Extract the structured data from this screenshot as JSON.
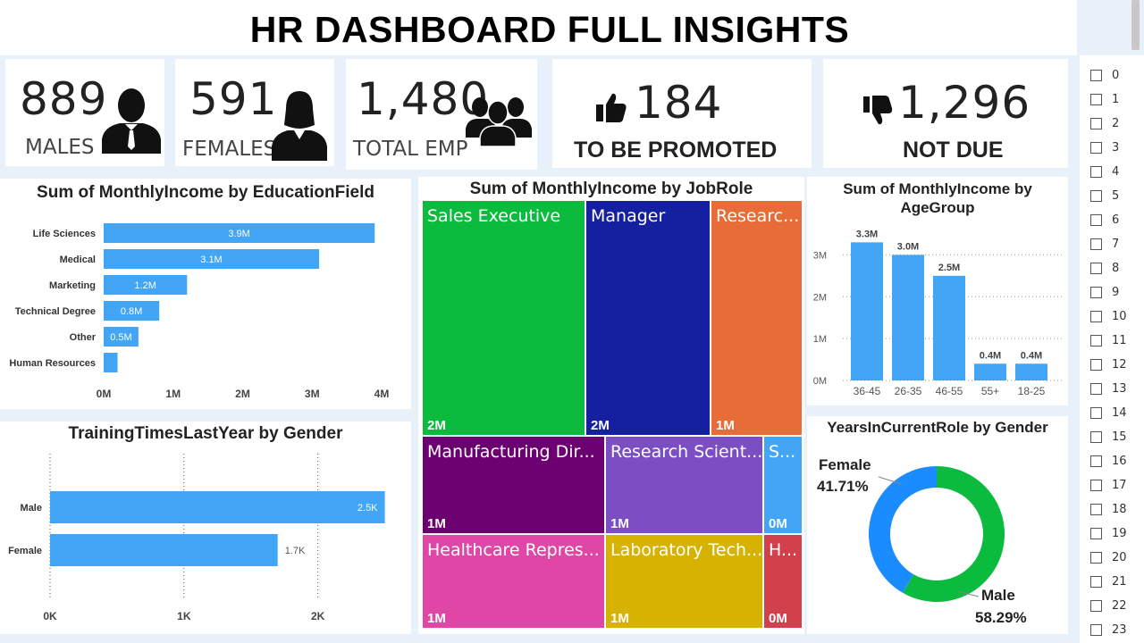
{
  "header": {
    "title": "HR DASHBOARD FULL INSIGHTS"
  },
  "kpis": {
    "males": {
      "value": "889",
      "label": "MALES",
      "icon": "male-person-icon"
    },
    "females": {
      "value": "591",
      "label": "FEMALES",
      "icon": "female-person-icon"
    },
    "total": {
      "value": "1,480",
      "label": "TOTAL EMP",
      "icon": "group-people-icon"
    },
    "promoted": {
      "value": "184",
      "label": "TO BE PROMOTED",
      "icon": "thumbs-up-icon"
    },
    "not_due": {
      "value": "1,296",
      "label": "NOT DUE",
      "icon": "thumbs-down-icon"
    }
  },
  "colors": {
    "bar": "#42a5f5",
    "green": "#0abb3e",
    "navy": "#1420a0",
    "orange": "#e76c37",
    "purple": "#6c0070",
    "violet": "#7b4fc3",
    "sky": "#42a5f5",
    "pink": "#e046a6",
    "gold": "#d8b200",
    "red": "#d2404b"
  },
  "charts": {
    "education": {
      "title": "Sum of MonthlyIncome by EducationField",
      "chart_data": {
        "type": "bar",
        "orientation": "horizontal",
        "categories": [
          "Life Sciences",
          "Medical",
          "Marketing",
          "Technical Degree",
          "Other",
          "Human Resources"
        ],
        "values": [
          3.9,
          3.1,
          1.2,
          0.8,
          0.5,
          0.2
        ],
        "data_labels": [
          "3.9M",
          "3.1M",
          "1.2M",
          "0.8M",
          "0.5M",
          ""
        ],
        "xlim": [
          0,
          4
        ],
        "xticks": [
          0,
          1,
          2,
          3,
          4
        ],
        "xtick_labels": [
          "0M",
          "1M",
          "2M",
          "3M",
          "4M"
        ]
      }
    },
    "training": {
      "title": "TrainingTimesLastYear by Gender",
      "chart_data": {
        "type": "bar",
        "orientation": "horizontal",
        "categories": [
          "Male",
          "Female"
        ],
        "values": [
          2.5,
          1.7
        ],
        "data_labels": [
          "2.5K",
          "1.7K"
        ],
        "xlim": [
          0,
          2.75
        ],
        "xticks": [
          0,
          1,
          2
        ],
        "xtick_labels": [
          "0K",
          "1K",
          "2K"
        ],
        "grid": true
      }
    },
    "jobrole": {
      "title": "Sum of MonthlyIncome by JobRole",
      "chart_data": {
        "type": "treemap",
        "items": [
          {
            "label": "Sales Executive",
            "value": "2M",
            "color": "#0abb3e"
          },
          {
            "label": "Manager",
            "value": "2M",
            "color": "#1420a0"
          },
          {
            "label": "Researc...",
            "value": "1M",
            "color": "#e76c37"
          },
          {
            "label": "Manufacturing Dir...",
            "value": "1M",
            "color": "#6c0070"
          },
          {
            "label": "Research Scient...",
            "value": "1M",
            "color": "#7b4fc3"
          },
          {
            "label": "S...",
            "value": "0M",
            "color": "#42a5f5"
          },
          {
            "label": "Healthcare Repres...",
            "value": "1M",
            "color": "#e046a6"
          },
          {
            "label": "Laboratory Tech...",
            "value": "1M",
            "color": "#d8b200"
          },
          {
            "label": "H...",
            "value": "0M",
            "color": "#d2404b"
          }
        ]
      }
    },
    "agegroup": {
      "title_line1": "Sum of MonthlyIncome by",
      "title_line2": "AgeGroup",
      "chart_data": {
        "type": "bar",
        "orientation": "vertical",
        "categories": [
          "36-45",
          "26-35",
          "46-55",
          "55+",
          "18-25"
        ],
        "values": [
          3.3,
          3.0,
          2.5,
          0.4,
          0.4
        ],
        "data_labels": [
          "3.3M",
          "3.0M",
          "2.5M",
          "0.4M",
          "0.4M"
        ],
        "ylim": [
          0,
          3.5
        ],
        "yticks": [
          0,
          1,
          2,
          3
        ],
        "ytick_labels": [
          "0M",
          "1M",
          "2M",
          "3M"
        ],
        "grid": true
      }
    },
    "yearsrole": {
      "title": "YearsInCurrentRole by Gender",
      "chart_data": {
        "type": "pie",
        "donut": true,
        "slices": [
          {
            "name": "Female",
            "value": 41.71,
            "label": "41.71%",
            "color": "#1a8cff"
          },
          {
            "name": "Male",
            "value": 58.29,
            "label": "58.29%",
            "color": "#0abb3e"
          }
        ]
      }
    }
  },
  "slicer": {
    "items": [
      "0",
      "1",
      "2",
      "3",
      "4",
      "5",
      "6",
      "7",
      "8",
      "9",
      "10",
      "11",
      "12",
      "13",
      "14",
      "15",
      "16",
      "17",
      "18",
      "19",
      "20",
      "21",
      "22",
      "23"
    ]
  }
}
